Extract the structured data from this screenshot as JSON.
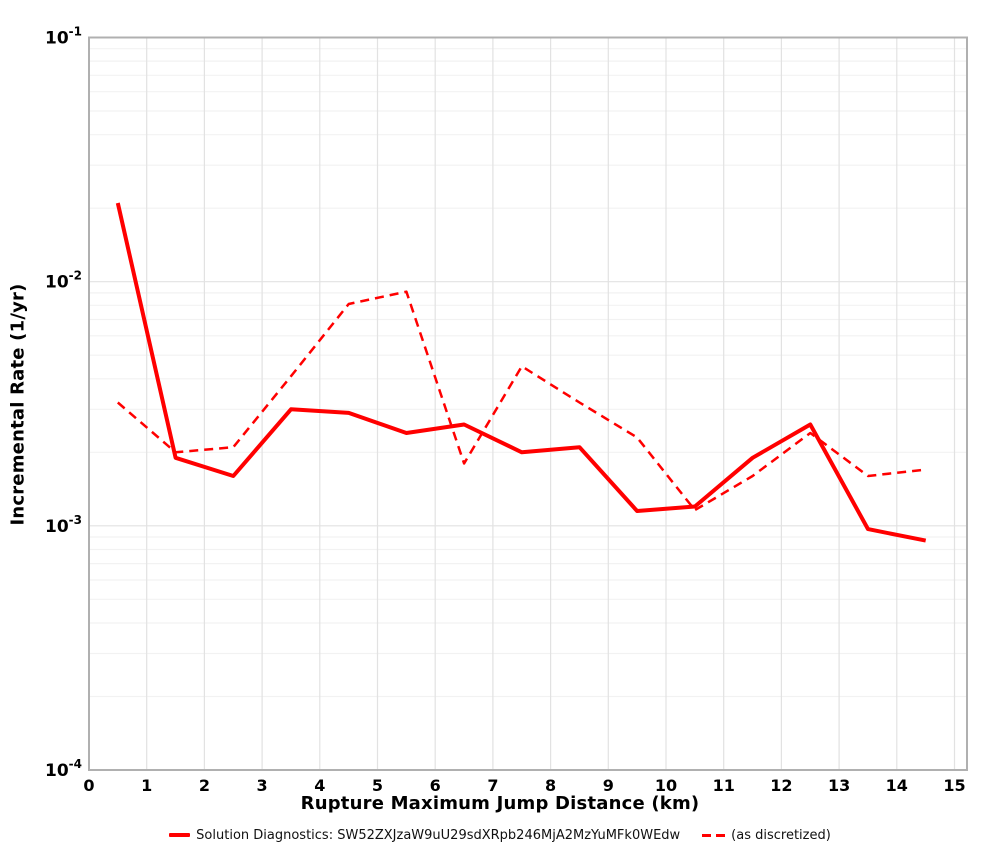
{
  "figure": {
    "xlabel": "Rupture Maximum Jump Distance (km)",
    "ylabel": "Incremental Rate (1/yr)"
  },
  "legend": {
    "solid_label": "Solution Diagnostics: SW52ZXJzaW9uU29sdXRpb246MjA2MzYuMFk0WEdw",
    "dashed_label": "(as discretized)"
  },
  "colors": {
    "line": "#ff0000",
    "grid_major": "#e2e2e2",
    "grid_minor": "#f2f2f2",
    "border": "#b0b0b0",
    "tick_text": "#000000"
  },
  "chart_data": {
    "type": "line",
    "title": "",
    "xlabel": "Rupture Maximum Jump Distance (km)",
    "ylabel": "Incremental Rate (1/yr)",
    "yscale": "log",
    "xlim": [
      0,
      15.2
    ],
    "ylim": [
      0.0001,
      0.1
    ],
    "grid": true,
    "legend_position": "bottom",
    "x": [
      0.5,
      1.5,
      2.5,
      3.5,
      4.5,
      5.5,
      6.5,
      7.5,
      8.5,
      9.5,
      10.5,
      11.5,
      12.5,
      13.5,
      14.5
    ],
    "series": [
      {
        "name": "Solution Diagnostics: SW52ZXJzaW9uU29sdXRpb246MjA2MzYuMFk0WEdw",
        "style": "solid",
        "width": 4,
        "values": [
          0.021,
          0.0019,
          0.0016,
          0.003,
          0.0029,
          0.0024,
          0.0026,
          0.002,
          0.0021,
          0.00115,
          0.0012,
          0.0019,
          0.0026,
          0.00097,
          0.00087
        ]
      },
      {
        "name": "(as discretized)",
        "style": "dashed",
        "width": 2.5,
        "values": [
          0.0032,
          0.002,
          0.0021,
          0.0041,
          0.0081,
          0.0091,
          0.0018,
          0.0045,
          0.0032,
          0.0023,
          0.00116,
          0.0016,
          0.0024,
          0.0016,
          0.0017
        ]
      }
    ],
    "x_ticks": [
      0,
      1,
      2,
      3,
      4,
      5,
      6,
      7,
      8,
      9,
      10,
      11,
      12,
      13,
      14,
      15
    ],
    "y_ticks": [
      {
        "value": 0.1,
        "base": "10",
        "exp": "-1"
      },
      {
        "value": 0.01,
        "base": "10",
        "exp": "-2"
      },
      {
        "value": 0.001,
        "base": "10",
        "exp": "-3"
      },
      {
        "value": 0.0001,
        "base": "10",
        "exp": "-4"
      }
    ]
  }
}
